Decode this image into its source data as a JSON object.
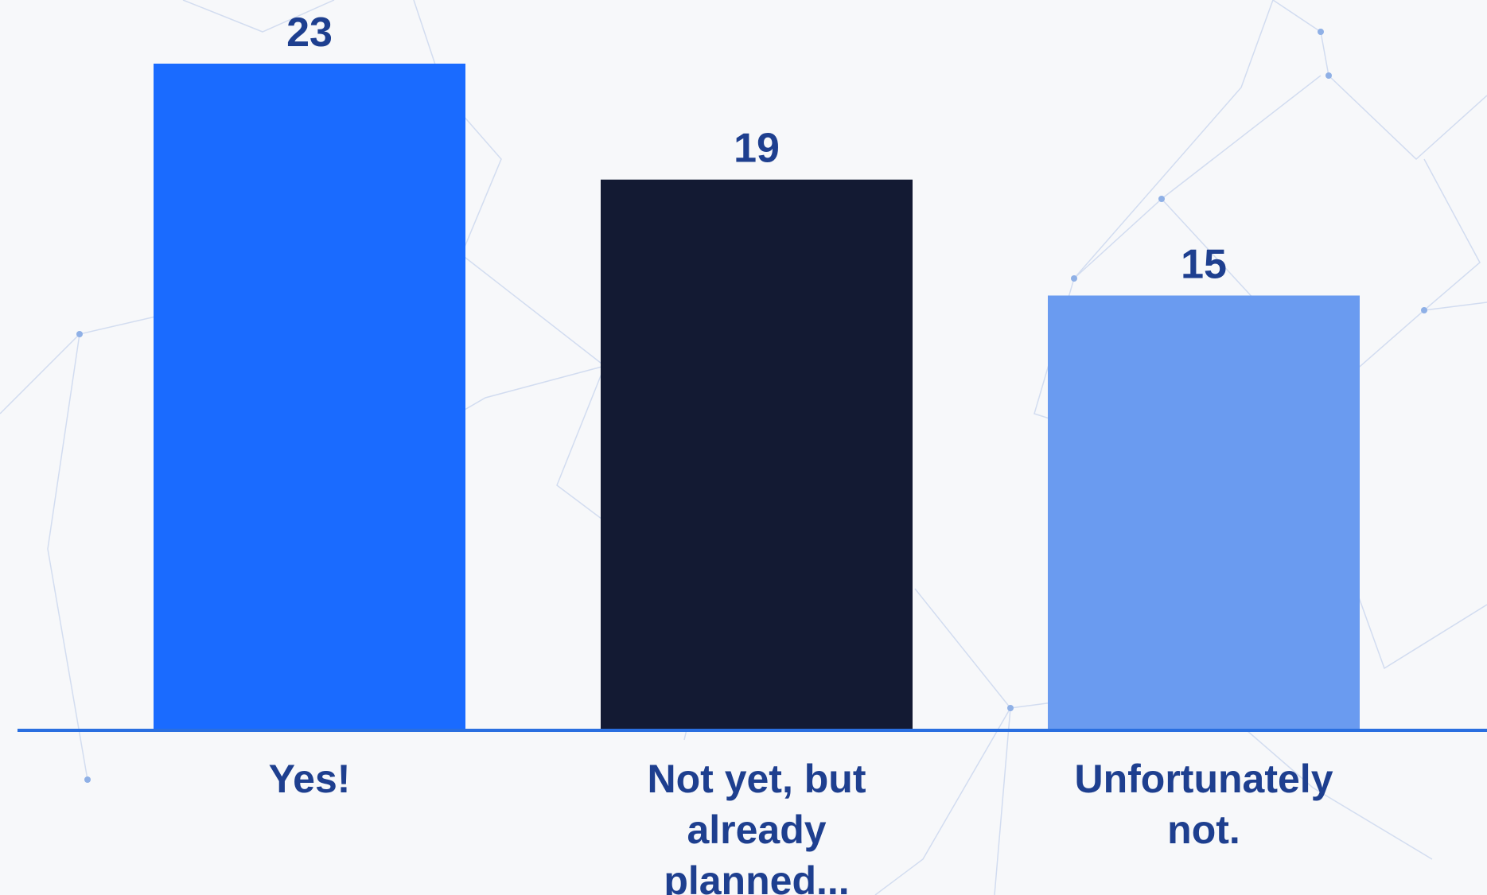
{
  "chart_data": {
    "type": "bar",
    "categories": [
      [
        "Yes!"
      ],
      [
        "Not yet, but",
        "already",
        "planned..."
      ],
      [
        "Unfortunately",
        "not."
      ]
    ],
    "values": [
      23,
      19,
      15
    ],
    "data_labels": [
      "23",
      "19",
      "15"
    ],
    "ylim": [
      0,
      25
    ],
    "grid": false,
    "legend": "none",
    "colors": [
      "#1a6bff",
      "#131a33",
      "#6a9bf0"
    ],
    "axis_color": "#2a6fe0",
    "label_color": "#1e3f8f",
    "background_color": "#f7f8fa"
  }
}
